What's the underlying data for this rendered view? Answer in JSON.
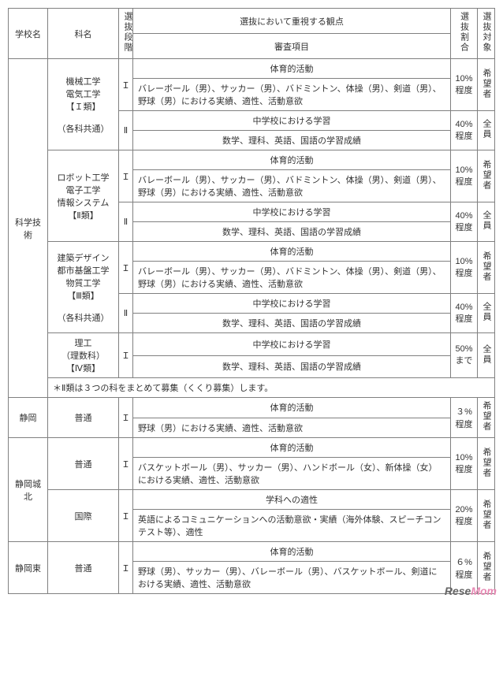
{
  "headers": {
    "school": "学校名",
    "dept": "科名",
    "stage": "選抜段階",
    "viewpoint": "選抜において重視する観点",
    "items": "審査項目",
    "ratio": "選抜割合",
    "target": "選抜対象"
  },
  "stages": {
    "I": "Ｉ",
    "II": "Ⅱ"
  },
  "schools": {
    "kagaku": "科学技術",
    "shizuoka": "静岡",
    "johoku": "静岡城北",
    "higashi": "静岡東"
  },
  "depts": {
    "kikai": "機械工学\n電気工学\n【Ｉ類】\n\n（各科共通）",
    "robot": "ロボット工学\n電子工学\n情報システム\n【Ⅱ類】",
    "kenchiku": "建築デザイン\n都市基盤工学\n物質工学\n【Ⅲ類】\n\n（各科共通）",
    "riko": "理工\n（理数科）\n【Ⅳ類】",
    "futsu": "普通",
    "kokusai": "国際"
  },
  "rows": {
    "pe_title": "体育的活動",
    "pe_detail": "バレーボール（男）、サッカー（男）、バドミントン、体操（男）、剣道（男）、野球（男）における実績、適性、活動意欲",
    "jh_title": "中学校における学習",
    "jh_detail": "数学、理科、英語、国語の学習成績",
    "shizuoka_pe": "野球（男）における実績、適性、活動意欲",
    "johoku_pe": "バスケットボール（男）、サッカー（男）、ハンドボール（女）、新体操（女）における実績、適性、活動意欲",
    "gakka_title": "学科への適性",
    "gakka_detail": "英語によるコミュニケーションへの活動意欲・実績（海外体験、スピーチコンテスト等）、適性",
    "higashi_pe": "野球（男）、サッカー（男）、バレーボール（男）、バスケットボール、剣道における実績、適性、活動意欲"
  },
  "ratios": {
    "p10": "10%\n程度",
    "p40": "40%\n程度",
    "p50": "50%\nまで",
    "p3": "３%\n程度",
    "p20": "20%\n程度",
    "p6": "６%\n程度"
  },
  "targets": {
    "kibou": "希望者",
    "zenin": "全員"
  },
  "note": "＊Ⅱ類は３つの科をまとめて募集（くくり募集）します。",
  "watermark": {
    "r": "Rese",
    "m": "Mom"
  }
}
